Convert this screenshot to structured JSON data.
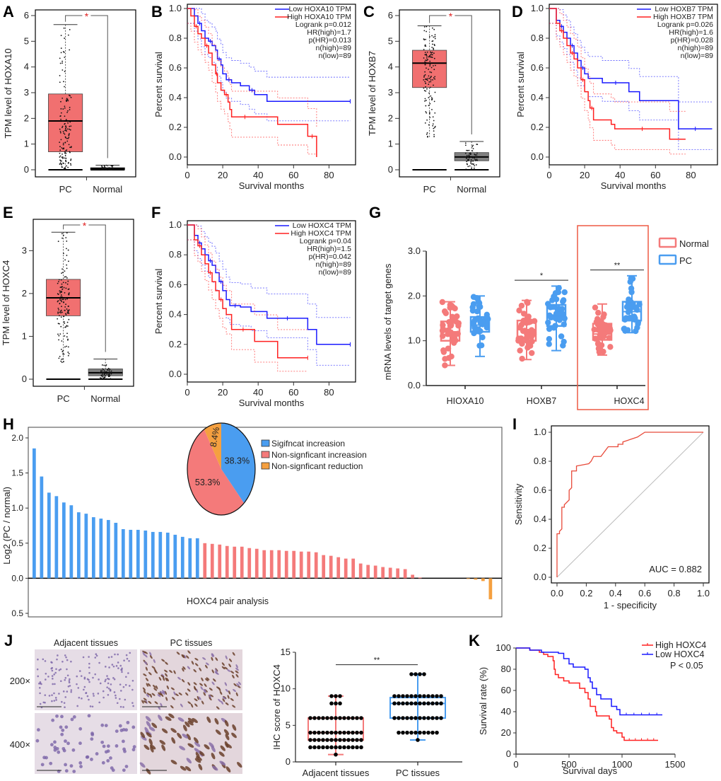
{
  "panel_labels": [
    "A",
    "B",
    "C",
    "D",
    "E",
    "F",
    "G",
    "H",
    "I",
    "J",
    "K"
  ],
  "chart_data": [
    {
      "id": "A",
      "type": "box",
      "ylabel": "TPM level of HOXA10",
      "categories": [
        "PC",
        "Normal"
      ],
      "ylim": [
        0,
        6
      ],
      "yticks": [
        0,
        1,
        2,
        3,
        4,
        5,
        6
      ],
      "significance": "*",
      "boxes": [
        {
          "name": "PC",
          "q1": 0.7,
          "median": 1.9,
          "q3": 2.95,
          "whisker_low": 0,
          "whisker_high": 5.65,
          "color": "#f06060"
        },
        {
          "name": "Normal",
          "q1": 0.01,
          "median": 0.05,
          "q3": 0.08,
          "whisker_low": 0,
          "whisker_high": 0.18,
          "color": "#555555"
        }
      ]
    },
    {
      "id": "B",
      "type": "line",
      "subtype": "kaplan-meier",
      "xlabel": "Survival months",
      "ylabel": "Percent survival",
      "xlim": [
        0,
        95
      ],
      "ylim": [
        0,
        1.0
      ],
      "xticks": [
        0,
        20,
        40,
        60,
        80
      ],
      "yticks": [
        0.0,
        0.2,
        0.4,
        0.6,
        0.8,
        1.0
      ],
      "legend": [
        "Low HOXA10 TPM",
        "High HOXA10 TPM"
      ],
      "stats": [
        "Logrank p=0.012",
        "HR(high)=1.7",
        "p(HR)=0.013",
        "n(high)=89",
        "n(low)=89"
      ],
      "series": [
        {
          "name": "Low HOXA10 TPM",
          "color": "#1a1aff",
          "x": [
            0,
            4,
            6,
            8,
            10,
            12,
            14,
            16,
            17,
            19,
            20,
            22,
            25,
            30,
            35,
            38,
            45,
            92
          ],
          "y": [
            1.0,
            0.95,
            0.9,
            0.85,
            0.8,
            0.78,
            0.75,
            0.72,
            0.66,
            0.62,
            0.56,
            0.52,
            0.5,
            0.48,
            0.45,
            0.42,
            0.375,
            0.375
          ]
        },
        {
          "name": "High HOXA10 TPM",
          "color": "#ff2020",
          "x": [
            0,
            2,
            4,
            6,
            8,
            10,
            12,
            14,
            16,
            17,
            19,
            21,
            23,
            24,
            25,
            40,
            51,
            68,
            73
          ],
          "y": [
            1.0,
            0.95,
            0.88,
            0.83,
            0.8,
            0.75,
            0.7,
            0.62,
            0.56,
            0.5,
            0.45,
            0.42,
            0.37,
            0.32,
            0.27,
            0.27,
            0.22,
            0.14,
            0.0
          ]
        }
      ]
    },
    {
      "id": "C",
      "type": "box",
      "ylabel": "TPM level of HOXB7",
      "categories": [
        "PC",
        "Normal"
      ],
      "ylim": [
        0,
        6
      ],
      "yticks": [
        0,
        1,
        2,
        3,
        4,
        5,
        6
      ],
      "significance": "*",
      "boxes": [
        {
          "name": "PC",
          "q1": 3.2,
          "median": 4.15,
          "q3": 4.65,
          "whisker_low": 1.25,
          "whisker_high": 5.6,
          "color": "#f06060"
        },
        {
          "name": "Normal",
          "q1": 0.35,
          "median": 0.5,
          "q3": 0.67,
          "whisker_low": 0,
          "whisker_high": 1.1,
          "color": "#555555"
        }
      ]
    },
    {
      "id": "D",
      "type": "line",
      "subtype": "kaplan-meier",
      "xlabel": "Survival months",
      "ylabel": "Percent survival",
      "xlim": [
        0,
        95
      ],
      "ylim": [
        0,
        1.0
      ],
      "xticks": [
        0,
        20,
        40,
        60,
        80
      ],
      "yticks": [
        0.0,
        0.2,
        0.4,
        0.6,
        0.8,
        1.0
      ],
      "legend": [
        "Low HOXB7 TPM",
        "High HOXB7 TPM"
      ],
      "stats": [
        "Logrank p=0.026",
        "HR(high)=1.6",
        "p(HR)=0.028",
        "n(high)=89",
        "n(low)=89"
      ],
      "series": [
        {
          "name": "Low HOXB7 TPM",
          "color": "#1a1aff",
          "x": [
            0,
            4,
            6,
            8,
            10,
            12,
            14,
            16,
            18,
            20,
            22,
            30,
            45,
            51,
            73,
            92
          ],
          "y": [
            1.0,
            0.92,
            0.88,
            0.84,
            0.8,
            0.75,
            0.7,
            0.65,
            0.6,
            0.56,
            0.53,
            0.5,
            0.44,
            0.38,
            0.19,
            0.19
          ]
        },
        {
          "name": "High HOXB7 TPM",
          "color": "#ff2020",
          "x": [
            0,
            4,
            6,
            8,
            10,
            12,
            14,
            16,
            18,
            20,
            22,
            23,
            25,
            35,
            37,
            68,
            77
          ],
          "y": [
            1.0,
            0.9,
            0.85,
            0.8,
            0.75,
            0.7,
            0.66,
            0.6,
            0.52,
            0.44,
            0.38,
            0.33,
            0.25,
            0.22,
            0.19,
            0.12,
            0.12
          ]
        }
      ]
    },
    {
      "id": "E",
      "type": "box",
      "ylabel": "TPM level of HOXC4",
      "categories": [
        "PC",
        "Normal"
      ],
      "ylim": [
        0,
        3.6
      ],
      "yticks": [
        0,
        1,
        2,
        3
      ],
      "significance": "*",
      "boxes": [
        {
          "name": "PC",
          "q1": 1.48,
          "median": 1.9,
          "q3": 2.33,
          "whisker_low": 0.37,
          "whisker_high": 3.43,
          "color": "#f06060"
        },
        {
          "name": "Normal",
          "q1": 0.08,
          "median": 0.15,
          "q3": 0.24,
          "whisker_low": 0,
          "whisker_high": 0.47,
          "color": "#555555"
        }
      ]
    },
    {
      "id": "F",
      "type": "line",
      "subtype": "kaplan-meier",
      "xlabel": "Survival months",
      "ylabel": "Percent survival",
      "xlim": [
        0,
        95
      ],
      "ylim": [
        0,
        1.0
      ],
      "xticks": [
        0,
        20,
        40,
        60,
        80
      ],
      "yticks": [
        0.0,
        0.2,
        0.4,
        0.6,
        0.8,
        1.0
      ],
      "legend": [
        "Low HOXC4 TPM",
        "High HOXC4 TPM"
      ],
      "stats": [
        "Logrank p=0.04",
        "HR(high)=1.5",
        "p(HR)=0.042",
        "n(high)=89",
        "n(low)=89"
      ],
      "series": [
        {
          "name": "Low HOXC4 TPM",
          "color": "#1a1aff",
          "x": [
            0,
            4,
            6,
            8,
            10,
            12,
            14,
            16,
            18,
            20,
            22,
            24,
            30,
            36,
            45,
            68,
            73,
            92
          ],
          "y": [
            1.0,
            0.93,
            0.88,
            0.84,
            0.8,
            0.76,
            0.73,
            0.68,
            0.62,
            0.56,
            0.5,
            0.46,
            0.45,
            0.42,
            0.375,
            0.3,
            0.2,
            0.2
          ]
        },
        {
          "name": "High HOXC4 TPM",
          "color": "#ff2020",
          "x": [
            0,
            4,
            6,
            8,
            10,
            12,
            14,
            16,
            18,
            20,
            22,
            25,
            38,
            51,
            68
          ],
          "y": [
            1.0,
            0.9,
            0.86,
            0.8,
            0.74,
            0.68,
            0.62,
            0.56,
            0.5,
            0.44,
            0.4,
            0.3,
            0.22,
            0.11,
            0.11
          ]
        }
      ]
    },
    {
      "id": "G",
      "type": "box",
      "ylabel": "mRNA levels of target genes",
      "categories": [
        "HIOXA10",
        "HOXB7",
        "HOXC4"
      ],
      "ylim": [
        0,
        3.0
      ],
      "yticks": [
        0.0,
        1.0,
        2.0,
        3.0
      ],
      "legend": [
        "Normal",
        "PC"
      ],
      "significance": [
        "",
        "*",
        "**"
      ],
      "highlight": "HOXC4",
      "series": [
        {
          "name": "Normal",
          "color": "#f47a7a",
          "boxes": [
            {
              "q1": 1.0,
              "median": 1.2,
              "q3": 1.43,
              "whisker_low": 0.45,
              "whisker_high": 1.87
            },
            {
              "q1": 1.0,
              "median": 1.25,
              "q3": 1.45,
              "whisker_low": 0.58,
              "whisker_high": 1.9
            },
            {
              "q1": 1.02,
              "median": 1.15,
              "q3": 1.38,
              "whisker_low": 0.68,
              "whisker_high": 1.82
            }
          ]
        },
        {
          "name": "PC",
          "color": "#4a9df0",
          "boxes": [
            {
              "q1": 1.2,
              "median": 1.35,
              "q3": 1.53,
              "whisker_low": 0.65,
              "whisker_high": 2.0
            },
            {
              "q1": 1.33,
              "median": 1.55,
              "q3": 1.8,
              "whisker_low": 0.78,
              "whisker_high": 2.22
            },
            {
              "q1": 1.45,
              "median": 1.65,
              "q3": 1.87,
              "whisker_low": 1.18,
              "whisker_high": 2.45
            }
          ]
        }
      ]
    },
    {
      "id": "H",
      "type": "bar",
      "xlabel": "HOXC4 pair analysis",
      "ylabel": "Log2 (PC / normal)",
      "ylim": [
        -0.5,
        2.0
      ],
      "yticks": [
        2.0,
        1.5,
        1.0,
        0.5,
        0.0,
        0.5
      ],
      "groups": [
        {
          "name": "Sigifncat increasion",
          "color": "#4a9df0",
          "values": [
            1.85,
            1.45,
            1.22,
            1.17,
            1.08,
            1.04,
            0.94,
            0.92,
            0.87,
            0.85,
            0.83,
            0.79,
            0.7,
            0.69,
            0.69,
            0.68,
            0.66,
            0.66,
            0.65,
            0.62,
            0.59,
            0.57,
            0.57
          ]
        },
        {
          "name": "Non-signficant increasion",
          "color": "#f47a7a",
          "values": [
            0.5,
            0.49,
            0.48,
            0.46,
            0.45,
            0.45,
            0.43,
            0.42,
            0.4,
            0.4,
            0.4,
            0.39,
            0.39,
            0.38,
            0.38,
            0.37,
            0.33,
            0.32,
            0.3,
            0.28,
            0.28,
            0.21,
            0.19,
            0.18,
            0.16,
            0.15,
            0.14,
            0.13,
            0.05,
            0.01
          ]
        },
        {
          "name": "Non-signficant reduction",
          "color": "#f5a040",
          "values": [
            0,
            0,
            0,
            0,
            -0.01,
            -0.02,
            -0.04,
            -0.3
          ]
        }
      ],
      "pie": {
        "slices": [
          {
            "label": "Sigifncat increasion",
            "value": 38.3,
            "text": "38.3%",
            "color": "#4a9df0"
          },
          {
            "label": "Non-signficant increasion",
            "value": 53.3,
            "text": "53.3%",
            "color": "#f47a7a"
          },
          {
            "label": "Non-signficant reduction",
            "value": 8.4,
            "text": "8.4%",
            "color": "#f5a040"
          }
        ]
      }
    },
    {
      "id": "I",
      "type": "line",
      "subtype": "roc",
      "xlabel": "1 - specificity",
      "ylabel": "Sensitivity",
      "xlim": [
        0,
        1
      ],
      "ylim": [
        0,
        1
      ],
      "xticks": [
        0.0,
        0.2,
        0.4,
        0.6,
        0.8,
        1.0
      ],
      "yticks": [
        0.0,
        0.2,
        0.4,
        0.6,
        0.8,
        1.0
      ],
      "annotation": "AUC = 0.882",
      "series": [
        {
          "name": "ROC",
          "color": "#e84a3a",
          "x": [
            0,
            0,
            0.017,
            0.017,
            0.033,
            0.033,
            0.05,
            0.05,
            0.083,
            0.083,
            0.1,
            0.1,
            0.133,
            0.133,
            0.217,
            0.233,
            0.25,
            0.3,
            0.35,
            0.417,
            0.417,
            0.45,
            0.45,
            0.55,
            0.6,
            1.0
          ],
          "y": [
            0,
            0.3,
            0.3,
            0.317,
            0.333,
            0.483,
            0.483,
            0.5,
            0.533,
            0.6,
            0.617,
            0.733,
            0.733,
            0.767,
            0.783,
            0.8,
            0.833,
            0.833,
            0.9,
            0.9,
            0.917,
            0.917,
            0.933,
            0.967,
            1.0,
            1.0
          ]
        },
        {
          "name": "reference",
          "color": "#bbbbbb",
          "x": [
            0,
            1
          ],
          "y": [
            0,
            1
          ]
        }
      ]
    },
    {
      "id": "J-images",
      "type": "table",
      "columns": [
        "Adjacent tissues",
        "PC tissues"
      ],
      "rows": [
        "200×",
        "400×"
      ]
    },
    {
      "id": "J",
      "type": "box",
      "ylabel": "IHC score of HOXC4",
      "categories": [
        "Adjacent tissues",
        "PC tissues"
      ],
      "ylim": [
        0,
        15
      ],
      "yticks": [
        0,
        5,
        10,
        15
      ],
      "significance": "**",
      "boxes": [
        {
          "name": "Adjacent tissues",
          "q1": 3,
          "median": 4,
          "q3": 6,
          "whisker_low": 1,
          "whisker_high": 9,
          "color": "#f47a7a",
          "points": [
            {
              "v": 9,
              "n": 3
            },
            {
              "v": 8,
              "n": 3
            },
            {
              "v": 6,
              "n": 13
            },
            {
              "v": 4,
              "n": 13
            },
            {
              "v": 3,
              "n": 13
            },
            {
              "v": 2,
              "n": 13
            },
            {
              "v": 1,
              "n": 1
            }
          ]
        },
        {
          "name": "PC tissues",
          "q1": 6,
          "median": 8,
          "q3": 8.8,
          "whisker_low": 3,
          "whisker_high": 12,
          "color": "#4a9df0",
          "points": [
            {
              "v": 12,
              "n": 4
            },
            {
              "v": 9,
              "n": 12
            },
            {
              "v": 8,
              "n": 12
            },
            {
              "v": 6,
              "n": 12
            },
            {
              "v": 4,
              "n": 10
            },
            {
              "v": 3,
              "n": 1
            }
          ]
        }
      ]
    },
    {
      "id": "K",
      "type": "line",
      "subtype": "kaplan-meier",
      "xlabel": "Survival days",
      "ylabel": "Survival rate (%)",
      "xlim": [
        0,
        1500
      ],
      "ylim": [
        0,
        100
      ],
      "xticks": [
        0,
        500,
        1000,
        1500
      ],
      "yticks": [
        0,
        20,
        40,
        60,
        80,
        100
      ],
      "legend": [
        "High HOXC4",
        "Low HOXC4"
      ],
      "annotation": "P < 0.05",
      "series": [
        {
          "name": "High HOXC4",
          "color": "#ff2020",
          "x": [
            0,
            130,
            220,
            260,
            300,
            350,
            360,
            370,
            400,
            450,
            500,
            600,
            650,
            680,
            700,
            750,
            760,
            880,
            900,
            920,
            950,
            1000,
            1020,
            1340
          ],
          "y": [
            100,
            98,
            96,
            94,
            92,
            88,
            80,
            75,
            72,
            69,
            67,
            62,
            58,
            52,
            45,
            40,
            36,
            33,
            25,
            22,
            20,
            16,
            13,
            13
          ]
        },
        {
          "name": "Low HOXC4",
          "color": "#1a1aff",
          "x": [
            0,
            130,
            240,
            400,
            450,
            500,
            540,
            650,
            680,
            700,
            720,
            760,
            800,
            900,
            950,
            980,
            1380
          ],
          "y": [
            100,
            98,
            96,
            95,
            90,
            85,
            82,
            80,
            72,
            68,
            62,
            56,
            52,
            45,
            42,
            37,
            37
          ]
        }
      ]
    }
  ]
}
